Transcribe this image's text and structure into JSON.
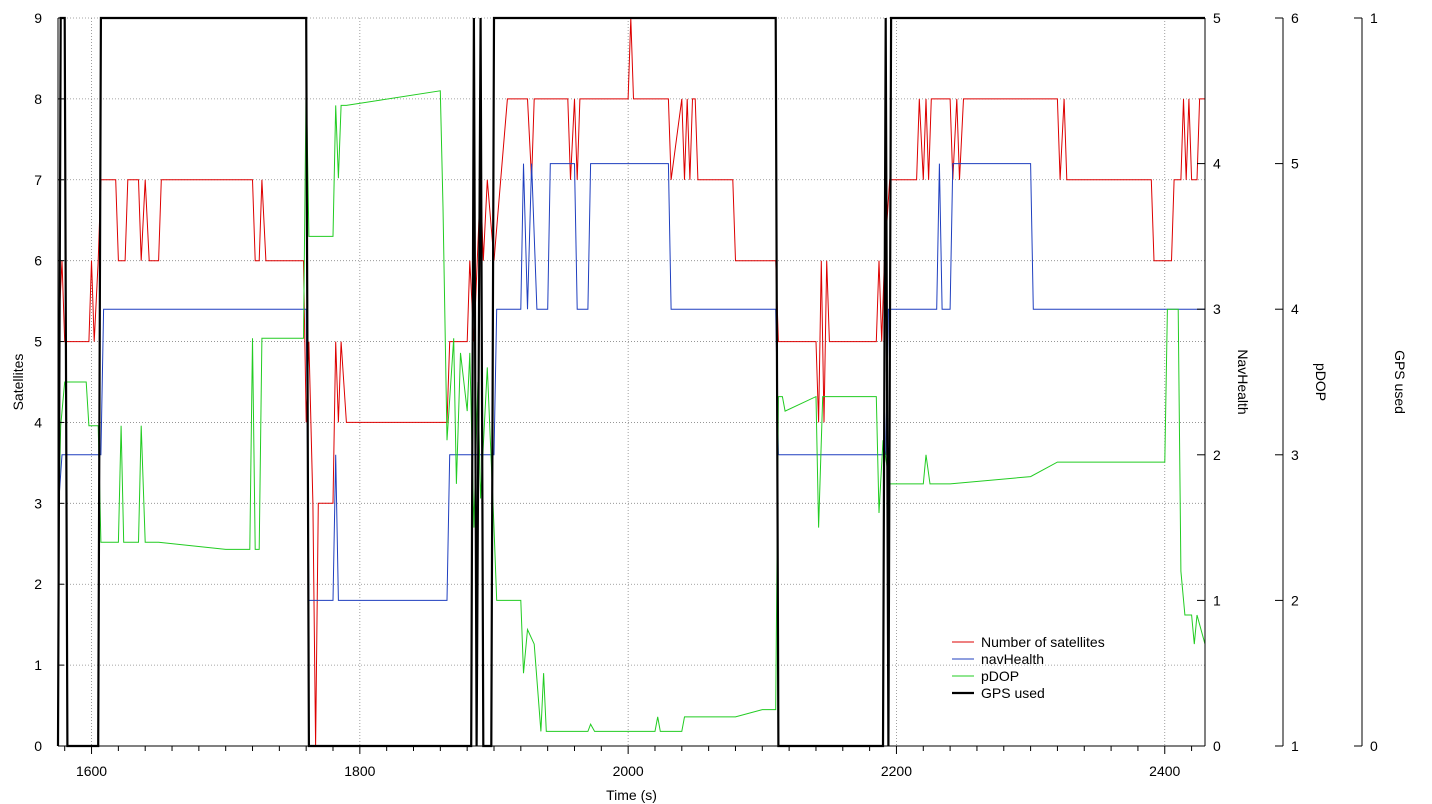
{
  "chart_data": {
    "type": "line",
    "xlabel": "Time (s)",
    "xlim": [
      1575,
      2430
    ],
    "x_ticks": [
      1600,
      1800,
      2000,
      2200,
      2400
    ],
    "grid": true,
    "legend_position": "bottom-right",
    "axes": [
      {
        "id": "satellites",
        "label": "Satellites",
        "position": "left",
        "range": [
          0,
          9
        ],
        "ticks": [
          0,
          1,
          2,
          3,
          4,
          5,
          6,
          7,
          8,
          9
        ]
      },
      {
        "id": "navhealth",
        "label": "NavHealth",
        "position": "right",
        "range": [
          0,
          5
        ],
        "ticks": [
          0,
          1,
          2,
          3,
          4,
          5
        ]
      },
      {
        "id": "pdop",
        "label": "pDOP",
        "position": "right",
        "range": [
          1,
          6
        ],
        "ticks": [
          1,
          2,
          3,
          4,
          5,
          6
        ]
      },
      {
        "id": "gpsused",
        "label": "GPS used",
        "position": "right",
        "range": [
          0,
          1
        ],
        "ticks": [
          0,
          1
        ]
      }
    ],
    "series": [
      {
        "name": "Number of satellites",
        "axis": "satellites",
        "color": "#dd0000",
        "points": [
          [
            1575,
            5
          ],
          [
            1578,
            6
          ],
          [
            1580,
            5
          ],
          [
            1598,
            5
          ],
          [
            1600,
            6
          ],
          [
            1602,
            5
          ],
          [
            1605,
            6
          ],
          [
            1607,
            7
          ],
          [
            1618,
            7
          ],
          [
            1620,
            6
          ],
          [
            1625,
            6
          ],
          [
            1627,
            7
          ],
          [
            1635,
            7
          ],
          [
            1637,
            6
          ],
          [
            1640,
            7
          ],
          [
            1643,
            6
          ],
          [
            1650,
            6
          ],
          [
            1652,
            7
          ],
          [
            1720,
            7
          ],
          [
            1722,
            6
          ],
          [
            1725,
            6
          ],
          [
            1727,
            7
          ],
          [
            1730,
            6
          ],
          [
            1758,
            6
          ],
          [
            1760,
            4
          ],
          [
            1762,
            5
          ],
          [
            1765,
            3
          ],
          [
            1767,
            0
          ],
          [
            1769,
            3
          ],
          [
            1780,
            3
          ],
          [
            1782,
            5
          ],
          [
            1784,
            4
          ],
          [
            1786,
            5
          ],
          [
            1790,
            4
          ],
          [
            1865,
            4
          ],
          [
            1867,
            5
          ],
          [
            1880,
            5
          ],
          [
            1882,
            6
          ],
          [
            1885,
            5
          ],
          [
            1890,
            7
          ],
          [
            1892,
            6
          ],
          [
            1895,
            7
          ],
          [
            1900,
            6
          ],
          [
            1905,
            7
          ],
          [
            1910,
            8
          ],
          [
            1925,
            8
          ],
          [
            1928,
            7
          ],
          [
            1930,
            8
          ],
          [
            1955,
            8
          ],
          [
            1957,
            7
          ],
          [
            1960,
            8
          ],
          [
            1962,
            7
          ],
          [
            1964,
            8
          ],
          [
            2000,
            8
          ],
          [
            2002,
            9
          ],
          [
            2004,
            8
          ],
          [
            2030,
            8
          ],
          [
            2032,
            7
          ],
          [
            2040,
            8
          ],
          [
            2042,
            7
          ],
          [
            2044,
            8
          ],
          [
            2046,
            7
          ],
          [
            2048,
            8
          ],
          [
            2050,
            8
          ],
          [
            2052,
            7
          ],
          [
            2078,
            7
          ],
          [
            2080,
            6
          ],
          [
            2110,
            6
          ],
          [
            2112,
            5
          ],
          [
            2140,
            5
          ],
          [
            2142,
            4
          ],
          [
            2144,
            6
          ],
          [
            2146,
            4
          ],
          [
            2148,
            6
          ],
          [
            2150,
            5
          ],
          [
            2185,
            5
          ],
          [
            2187,
            6
          ],
          [
            2189,
            5
          ],
          [
            2191,
            6
          ],
          [
            2195,
            7
          ],
          [
            2215,
            7
          ],
          [
            2217,
            8
          ],
          [
            2220,
            7
          ],
          [
            2222,
            8
          ],
          [
            2224,
            7
          ],
          [
            2226,
            8
          ],
          [
            2240,
            8
          ],
          [
            2242,
            7
          ],
          [
            2245,
            8
          ],
          [
            2247,
            7
          ],
          [
            2250,
            8
          ],
          [
            2320,
            8
          ],
          [
            2322,
            7
          ],
          [
            2325,
            8
          ],
          [
            2327,
            7
          ],
          [
            2390,
            7
          ],
          [
            2392,
            6
          ],
          [
            2405,
            6
          ],
          [
            2407,
            7
          ],
          [
            2412,
            7
          ],
          [
            2414,
            8
          ],
          [
            2416,
            7
          ],
          [
            2418,
            8
          ],
          [
            2420,
            7
          ],
          [
            2424,
            7
          ],
          [
            2426,
            8
          ],
          [
            2430,
            8
          ]
        ]
      },
      {
        "name": "navHealth",
        "axis": "navhealth",
        "color": "#1f3fbf",
        "points": [
          [
            1575,
            1.6
          ],
          [
            1578,
            2
          ],
          [
            1607,
            2
          ],
          [
            1609,
            3
          ],
          [
            1760,
            3
          ],
          [
            1762,
            1
          ],
          [
            1780,
            1
          ],
          [
            1782,
            2
          ],
          [
            1784,
            1
          ],
          [
            1865,
            1
          ],
          [
            1867,
            2
          ],
          [
            1900,
            2
          ],
          [
            1902,
            3
          ],
          [
            1920,
            3
          ],
          [
            1922,
            4
          ],
          [
            1925,
            3
          ],
          [
            1928,
            4
          ],
          [
            1932,
            3
          ],
          [
            1940,
            3
          ],
          [
            1942,
            4
          ],
          [
            1960,
            4
          ],
          [
            1962,
            3
          ],
          [
            1970,
            3
          ],
          [
            1972,
            4
          ],
          [
            2030,
            4
          ],
          [
            2032,
            3
          ],
          [
            2110,
            3
          ],
          [
            2112,
            2
          ],
          [
            2192,
            2
          ],
          [
            2194,
            3
          ],
          [
            2230,
            3
          ],
          [
            2232,
            4
          ],
          [
            2234,
            3
          ],
          [
            2240,
            3
          ],
          [
            2242,
            4
          ],
          [
            2300,
            4
          ],
          [
            2302,
            3
          ],
          [
            2430,
            3
          ]
        ]
      },
      {
        "name": "pDOP",
        "axis": "pdop",
        "color": "#22cc22",
        "points": [
          [
            1575,
            2.4
          ],
          [
            1577,
            3.2
          ],
          [
            1580,
            3.5
          ],
          [
            1596,
            3.5
          ],
          [
            1598,
            3.2
          ],
          [
            1605,
            3.2
          ],
          [
            1607,
            2.4
          ],
          [
            1620,
            2.4
          ],
          [
            1622,
            3.2
          ],
          [
            1624,
            2.4
          ],
          [
            1635,
            2.4
          ],
          [
            1637,
            3.2
          ],
          [
            1640,
            2.4
          ],
          [
            1650,
            2.4
          ],
          [
            1700,
            2.35
          ],
          [
            1718,
            2.35
          ],
          [
            1720,
            3.8
          ],
          [
            1722,
            2.35
          ],
          [
            1725,
            2.35
          ],
          [
            1727,
            3.8
          ],
          [
            1758,
            3.8
          ],
          [
            1760,
            5.6
          ],
          [
            1762,
            4.5
          ],
          [
            1780,
            4.5
          ],
          [
            1782,
            5.4
          ],
          [
            1784,
            4.9
          ],
          [
            1786,
            5.4
          ],
          [
            1790,
            5.4
          ],
          [
            1860,
            5.5
          ],
          [
            1862,
            4.7
          ],
          [
            1865,
            3.1
          ],
          [
            1870,
            3.8
          ],
          [
            1872,
            2.8
          ],
          [
            1875,
            3.7
          ],
          [
            1880,
            3.3
          ],
          [
            1882,
            3.7
          ],
          [
            1885,
            2.5
          ],
          [
            1888,
            3.5
          ],
          [
            1890,
            2.7
          ],
          [
            1895,
            3.6
          ],
          [
            1900,
            2.5
          ],
          [
            1902,
            2.0
          ],
          [
            1920,
            2.0
          ],
          [
            1922,
            1.5
          ],
          [
            1925,
            1.8
          ],
          [
            1930,
            1.7
          ],
          [
            1935,
            1.1
          ],
          [
            1937,
            1.5
          ],
          [
            1939,
            1.1
          ],
          [
            1945,
            1.1
          ],
          [
            1970,
            1.1
          ],
          [
            1972,
            1.15
          ],
          [
            1975,
            1.1
          ],
          [
            2020,
            1.1
          ],
          [
            2022,
            1.2
          ],
          [
            2024,
            1.1
          ],
          [
            2040,
            1.1
          ],
          [
            2042,
            1.2
          ],
          [
            2080,
            1.2
          ],
          [
            2100,
            1.25
          ],
          [
            2110,
            1.25
          ],
          [
            2112,
            3.4
          ],
          [
            2115,
            3.4
          ],
          [
            2117,
            3.3
          ],
          [
            2140,
            3.4
          ],
          [
            2142,
            2.5
          ],
          [
            2145,
            3.4
          ],
          [
            2185,
            3.4
          ],
          [
            2187,
            2.6
          ],
          [
            2190,
            3.1
          ],
          [
            2195,
            2.8
          ],
          [
            2200,
            2.8
          ],
          [
            2205,
            2.8
          ],
          [
            2220,
            2.8
          ],
          [
            2222,
            3.0
          ],
          [
            2225,
            2.8
          ],
          [
            2230,
            2.8
          ],
          [
            2240,
            2.8
          ],
          [
            2300,
            2.85
          ],
          [
            2320,
            2.95
          ],
          [
            2400,
            2.95
          ],
          [
            2402,
            4.0
          ],
          [
            2410,
            4.0
          ],
          [
            2412,
            2.2
          ],
          [
            2415,
            1.9
          ],
          [
            2420,
            1.9
          ],
          [
            2422,
            1.7
          ],
          [
            2424,
            1.9
          ],
          [
            2430,
            1.7
          ]
        ]
      },
      {
        "name": "GPS used",
        "axis": "gpsused",
        "color": "#000000",
        "points": [
          [
            1575,
            0
          ],
          [
            1577,
            1
          ],
          [
            1580,
            1
          ],
          [
            1582,
            0
          ],
          [
            1605,
            0
          ],
          [
            1607,
            1
          ],
          [
            1760,
            1
          ],
          [
            1762,
            0
          ],
          [
            1883,
            0
          ],
          [
            1885,
            1
          ],
          [
            1887,
            0
          ],
          [
            1890,
            1
          ],
          [
            1892,
            0
          ],
          [
            1898,
            0
          ],
          [
            1900,
            1
          ],
          [
            2110,
            1
          ],
          [
            2112,
            0
          ],
          [
            2190,
            0
          ],
          [
            2192,
            1
          ],
          [
            2194,
            0
          ],
          [
            2196,
            1
          ],
          [
            2430,
            1
          ]
        ]
      }
    ]
  }
}
